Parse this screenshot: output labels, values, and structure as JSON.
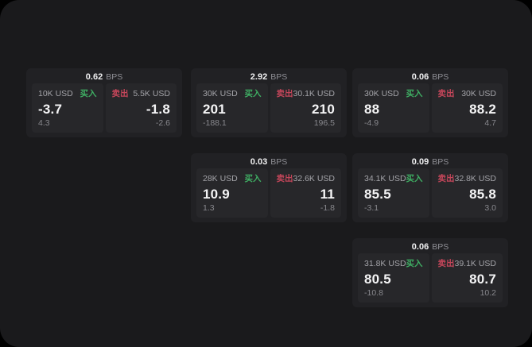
{
  "colors": {
    "buy_accent": "#3fae63",
    "sell_accent": "#c4465a",
    "surface_bg": "#1a1a1c",
    "card_bg": "#212124",
    "tile_bg": "#27272a"
  },
  "cards": [
    {
      "bps_value": "0.62",
      "bps_unit": "BPS",
      "buy": {
        "size": "10K USD",
        "side_label": "买入",
        "price": "-3.7",
        "delta": "4.3"
      },
      "sell": {
        "side_label": "卖出",
        "size": "5.5K USD",
        "price": "-1.8",
        "delta": "-2.6"
      }
    },
    {
      "bps_value": "2.92",
      "bps_unit": "BPS",
      "buy": {
        "size": "30K USD",
        "side_label": "买入",
        "price": "201",
        "delta": "-188.1"
      },
      "sell": {
        "side_label": "卖出",
        "size": "30.1K USD",
        "price": "210",
        "delta": "196.5"
      }
    },
    {
      "bps_value": "0.06",
      "bps_unit": "BPS",
      "buy": {
        "size": "30K USD",
        "side_label": "买入",
        "price": "88",
        "delta": "-4.9"
      },
      "sell": {
        "side_label": "卖出",
        "size": "30K USD",
        "price": "88.2",
        "delta": "4.7"
      }
    },
    {
      "bps_value": "0.03",
      "bps_unit": "BPS",
      "buy": {
        "size": "28K USD",
        "side_label": "买入",
        "price": "10.9",
        "delta": "1.3"
      },
      "sell": {
        "side_label": "卖出",
        "size": "32.6K USD",
        "price": "11",
        "delta": "-1.8"
      }
    },
    {
      "bps_value": "0.09",
      "bps_unit": "BPS",
      "buy": {
        "size": "34.1K USD",
        "side_label": "买入",
        "price": "85.5",
        "delta": "-3.1"
      },
      "sell": {
        "side_label": "卖出",
        "size": "32.8K USD",
        "price": "85.8",
        "delta": "3.0"
      }
    },
    {
      "bps_value": "0.06",
      "bps_unit": "BPS",
      "buy": {
        "size": "31.8K USD",
        "side_label": "买入",
        "price": "80.5",
        "delta": "-10.8"
      },
      "sell": {
        "side_label": "卖出",
        "size": "39.1K USD",
        "price": "80.7",
        "delta": "10.2"
      }
    }
  ]
}
